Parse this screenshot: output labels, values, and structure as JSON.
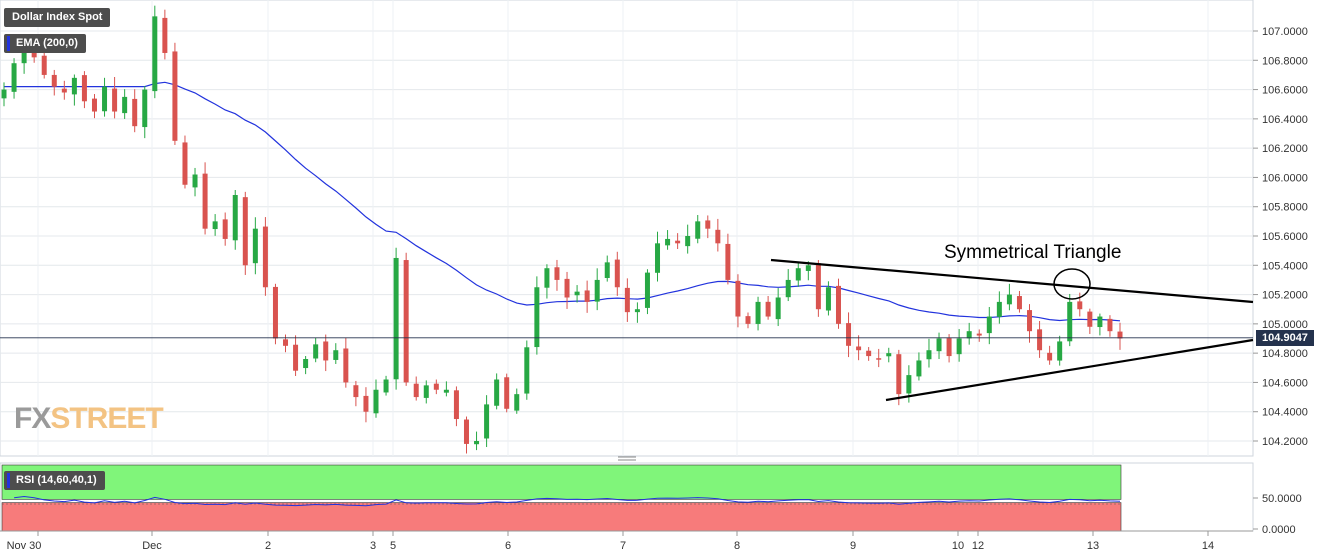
{
  "header": {
    "instrument": "Dollar Index Spot",
    "ema_label": "EMA (200,0)",
    "rsi_label": "RSI (14,60,40,1)",
    "last_price": "104.9047"
  },
  "colors": {
    "bull": "#27a844",
    "bear": "#d9534f",
    "ema": "#2233dd",
    "rsi_line": "#2233dd",
    "rsi_upper_zone": "#80f57a",
    "rsi_lower_zone": "#f77b7b",
    "annotation": "#000000",
    "price_badge": "#24324d"
  },
  "logo": {
    "part1": "FX",
    "part2": "STREET"
  },
  "annotation": {
    "label": "Symmetrical Triangle"
  },
  "chart_data": {
    "type": "candlestick",
    "x_ticks": [
      "Nov 30",
      "Dec",
      "2",
      "3",
      "5",
      "6",
      "7",
      "8",
      "9",
      "10",
      "12",
      "13",
      "14"
    ],
    "y_ticks": [
      "107.0000",
      "106.8000",
      "106.6000",
      "106.4000",
      "106.2000",
      "106.0000",
      "105.8000",
      "105.6000",
      "105.4000",
      "105.2000",
      "105.0000",
      "104.8000",
      "104.6000",
      "104.4000",
      "104.2000"
    ],
    "y_range": [
      104.1,
      107.2
    ],
    "rsi_ticks": [
      "50.0000",
      "0.0000"
    ],
    "rsi_range": [
      0,
      100
    ],
    "rsi_levels": [
      60,
      40
    ],
    "last_price": 104.9047,
    "close_path": [
      106.6,
      106.78,
      106.88,
      106.82,
      106.7,
      106.62,
      106.58,
      106.68,
      106.52,
      106.45,
      106.62,
      106.45,
      106.55,
      106.35,
      106.6,
      107.1,
      106.85,
      106.25,
      105.95,
      106.02,
      105.65,
      105.7,
      105.58,
      105.88,
      105.4,
      105.65,
      105.25,
      104.9,
      104.85,
      104.68,
      104.76,
      104.86,
      104.75,
      104.82,
      104.6,
      104.5,
      104.4,
      104.55,
      104.62,
      105.45,
      104.6,
      104.5,
      104.58,
      104.55,
      104.55,
      104.35,
      104.18,
      104.2,
      104.45,
      104.62,
      104.42,
      104.52,
      104.84,
      105.25,
      105.38,
      105.3,
      105.18,
      105.22,
      105.15,
      105.3,
      105.42,
      105.25,
      105.08,
      105.1,
      105.35,
      105.55,
      105.58,
      105.55,
      105.6,
      105.7,
      105.65,
      105.55,
      105.3,
      105.05,
      105.0,
      105.15,
      105.05,
      105.18,
      105.3,
      105.38,
      105.4,
      105.1,
      105.25,
      105.0,
      104.85,
      104.82,
      104.78,
      104.76,
      104.8,
      104.52,
      104.65,
      104.75,
      104.82,
      104.9,
      104.78,
      104.9,
      104.95,
      104.92,
      105.05,
      105.15,
      105.2,
      105.1,
      104.95,
      104.82,
      104.75,
      104.88,
      105.15,
      105.1,
      104.98,
      105.05,
      104.95,
      104.9
    ]
  }
}
